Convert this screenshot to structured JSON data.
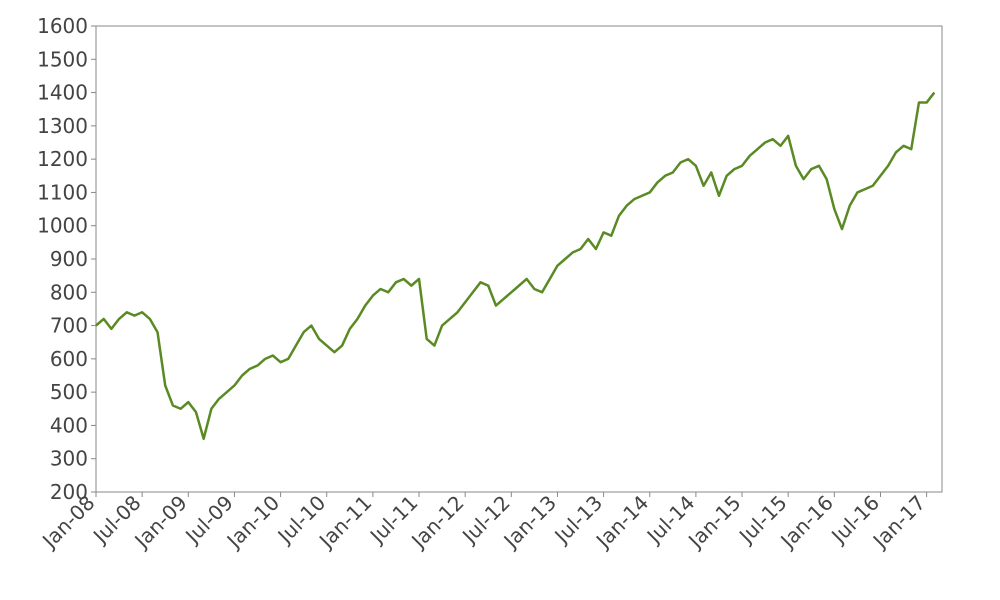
{
  "chart_data": {
    "type": "line",
    "x": [
      "2008-01",
      "2008-02",
      "2008-03",
      "2008-04",
      "2008-05",
      "2008-06",
      "2008-07",
      "2008-08",
      "2008-09",
      "2008-10",
      "2008-11",
      "2008-12",
      "2009-01",
      "2009-02",
      "2009-03",
      "2009-04",
      "2009-05",
      "2009-06",
      "2009-07",
      "2009-08",
      "2009-09",
      "2009-10",
      "2009-11",
      "2009-12",
      "2010-01",
      "2010-02",
      "2010-03",
      "2010-04",
      "2010-05",
      "2010-06",
      "2010-07",
      "2010-08",
      "2010-09",
      "2010-10",
      "2010-11",
      "2010-12",
      "2011-01",
      "2011-02",
      "2011-03",
      "2011-04",
      "2011-05",
      "2011-06",
      "2011-07",
      "2011-08",
      "2011-09",
      "2011-10",
      "2011-11",
      "2011-12",
      "2012-01",
      "2012-02",
      "2012-03",
      "2012-04",
      "2012-05",
      "2012-06",
      "2012-07",
      "2012-08",
      "2012-09",
      "2012-10",
      "2012-11",
      "2012-12",
      "2013-01",
      "2013-02",
      "2013-03",
      "2013-04",
      "2013-05",
      "2013-06",
      "2013-07",
      "2013-08",
      "2013-09",
      "2013-10",
      "2013-11",
      "2013-12",
      "2014-01",
      "2014-02",
      "2014-03",
      "2014-04",
      "2014-05",
      "2014-06",
      "2014-07",
      "2014-08",
      "2014-09",
      "2014-10",
      "2014-11",
      "2014-12",
      "2015-01",
      "2015-02",
      "2015-03",
      "2015-04",
      "2015-05",
      "2015-06",
      "2015-07",
      "2015-08",
      "2015-09",
      "2015-10",
      "2015-11",
      "2015-12",
      "2016-01",
      "2016-02",
      "2016-03",
      "2016-04",
      "2016-05",
      "2016-06",
      "2016-07",
      "2016-08",
      "2016-09",
      "2016-10",
      "2016-11",
      "2016-12",
      "2017-01",
      "2017-02"
    ],
    "series": [
      {
        "color": "#5a8a23",
        "values": [
          700,
          720,
          690,
          720,
          740,
          730,
          740,
          720,
          680,
          520,
          460,
          450,
          470,
          440,
          360,
          450,
          480,
          500,
          520,
          550,
          570,
          580,
          600,
          610,
          590,
          600,
          640,
          680,
          700,
          660,
          640,
          620,
          640,
          690,
          720,
          760,
          790,
          810,
          800,
          830,
          840,
          820,
          840,
          660,
          640,
          700,
          720,
          740,
          770,
          800,
          830,
          820,
          760,
          780,
          800,
          820,
          840,
          810,
          800,
          840,
          880,
          900,
          920,
          930,
          960,
          930,
          980,
          970,
          1030,
          1060,
          1080,
          1090,
          1100,
          1130,
          1150,
          1160,
          1190,
          1200,
          1180,
          1120,
          1160,
          1090,
          1150,
          1170,
          1180,
          1210,
          1230,
          1250,
          1260,
          1240,
          1270,
          1180,
          1140,
          1170,
          1180,
          1140,
          1050,
          990,
          1060,
          1100,
          1110,
          1120,
          1150,
          1180,
          1220,
          1240,
          1230,
          1370,
          1370,
          1400
        ]
      }
    ],
    "xlim": [
      "2008-01",
      "2017-03"
    ],
    "xticks": [
      {
        "value": "2008-01",
        "label": "Jan-08"
      },
      {
        "value": "2008-07",
        "label": "Jul-08"
      },
      {
        "value": "2009-01",
        "label": "Jan-09"
      },
      {
        "value": "2009-07",
        "label": "Jul-09"
      },
      {
        "value": "2010-01",
        "label": "Jan-10"
      },
      {
        "value": "2010-07",
        "label": "Jul-10"
      },
      {
        "value": "2011-01",
        "label": "Jan-11"
      },
      {
        "value": "2011-07",
        "label": "Jul-11"
      },
      {
        "value": "2012-01",
        "label": "Jan-12"
      },
      {
        "value": "2012-07",
        "label": "Jul-12"
      },
      {
        "value": "2013-01",
        "label": "Jan-13"
      },
      {
        "value": "2013-07",
        "label": "Jul-13"
      },
      {
        "value": "2014-01",
        "label": "Jan-14"
      },
      {
        "value": "2014-07",
        "label": "Jul-14"
      },
      {
        "value": "2015-01",
        "label": "Jan-15"
      },
      {
        "value": "2015-07",
        "label": "Jul-15"
      },
      {
        "value": "2016-01",
        "label": "Jan-16"
      },
      {
        "value": "2016-07",
        "label": "Jul-16"
      },
      {
        "value": "2017-01",
        "label": "Jan-17"
      }
    ],
    "ylim": [
      200,
      1600
    ],
    "yticks": [
      200,
      300,
      400,
      500,
      600,
      700,
      800,
      900,
      1000,
      1100,
      1200,
      1300,
      1400,
      1500,
      1600
    ],
    "grid": false
  }
}
